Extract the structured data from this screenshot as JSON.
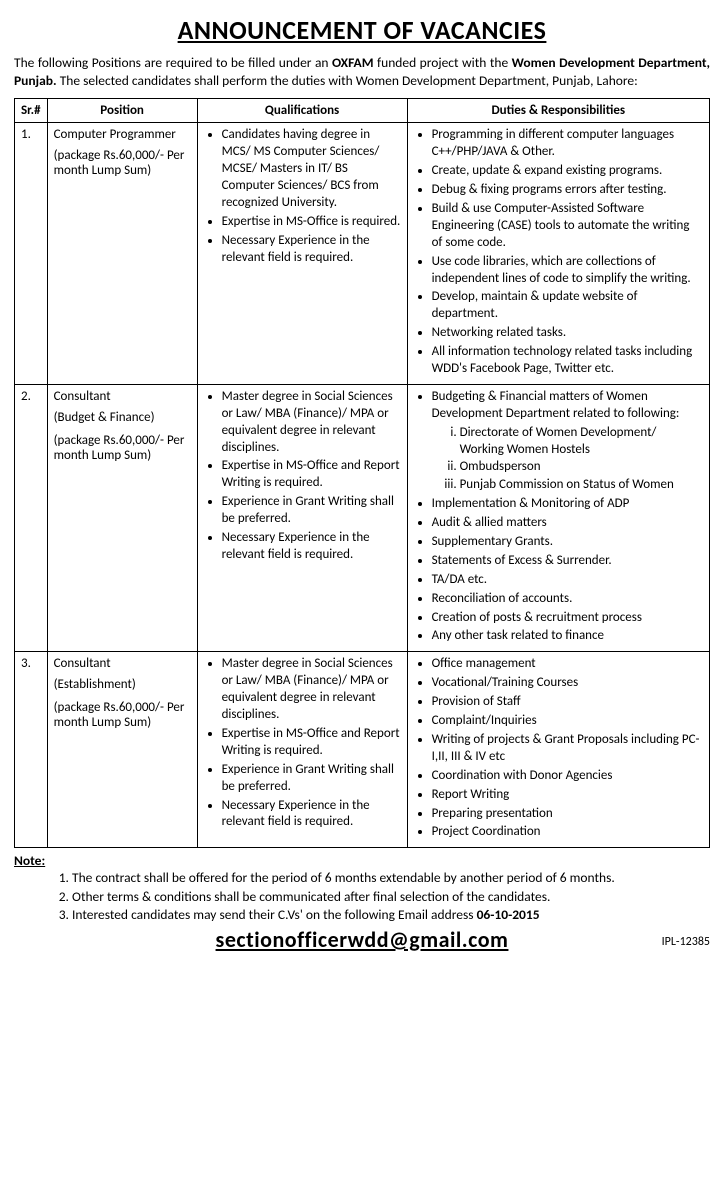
{
  "title": "ANNOUNCEMENT OF VACANCIES",
  "intro": {
    "pre": "The following Positions are required to be filled under an ",
    "oxfam": "OXFAM",
    "mid": " funded project with the ",
    "dept": "Women Development Department, Punjab.",
    "post": " The selected candidates shall perform the duties with Women Development Department, Punjab, Lahore:"
  },
  "headers": {
    "sr": "Sr.#",
    "pos": "Position",
    "qual": "Qualifications",
    "duty": "Duties & Responsibilities"
  },
  "rows": [
    {
      "sr": "1.",
      "pos_title": "Computer Programmer",
      "pos_pkg": "(package Rs.60,000/- Per month Lump Sum)",
      "qual": [
        "Candidates having degree in MCS/ MS Computer Sciences/ MCSE/   Masters in IT/ BS Computer Sciences/ BCS from recognized University.",
        "Expertise in MS-Office is required.",
        "Necessary Experience in the relevant field is required."
      ],
      "duty": [
        "Programming in different computer languages C++/PHP/JAVA & Other.",
        "Create, update & expand existing programs.",
        "Debug & fixing programs errors after testing.",
        "Build & use Computer-Assisted Software Engineering (CASE) tools to automate the writing of some code.",
        "Use code libraries, which are collections of independent lines of code to simplify the writing.",
        "Develop, maintain & update website of department.",
        "Networking related tasks.",
        "All information technology related tasks including WDD's Facebook Page, Twitter etc."
      ]
    },
    {
      "sr": "2.",
      "pos_title": "Consultant",
      "pos_sub": "(Budget & Finance)",
      "pos_pkg": "(package Rs.60,000/- Per month Lump Sum)",
      "qual": [
        "Master degree in Social Sciences or Law/ MBA (Finance)/ MPA or equivalent degree in relevant disciplines.",
        "Expertise in MS-Office and Report Writing is required.",
        "Experience in Grant Writing shall be preferred.",
        "Necessary Experience in the relevant field is required."
      ],
      "duty_lead": "Budgeting & Financial matters of Women Development Department related to following:",
      "duty_roman": [
        "Directorate of Women Development/ Working Women Hostels",
        "Ombudsperson",
        "Punjab Commission on Status of Women"
      ],
      "duty": [
        "Implementation & Monitoring of ADP",
        "Audit & allied matters",
        "Supplementary Grants.",
        "Statements of Excess & Surrender.",
        "TA/DA etc.",
        "Reconciliation of accounts.",
        "Creation of posts & recruitment process",
        "Any other task related to finance"
      ]
    },
    {
      "sr": "3.",
      "pos_title": "Consultant",
      "pos_sub": "(Establishment)",
      "pos_pkg": "(package Rs.60,000/- Per month Lump Sum)",
      "qual": [
        "Master degree in Social Sciences or Law/ MBA (Finance)/ MPA or equivalent degree in relevant disciplines.",
        "Expertise in MS-Office and Report Writing is required.",
        "Experience in Grant Writing shall be preferred.",
        "Necessary Experience in the relevant field is required."
      ],
      "duty": [
        "Office management",
        "Vocational/Training Courses",
        "Provision of Staff",
        "Complaint/Inquiries",
        "Writing of projects & Grant Proposals including PC-I,II, III & IV etc",
        "Coordination with Donor Agencies",
        "Report Writing",
        "Preparing presentation",
        "Project Coordination"
      ]
    }
  ],
  "note_label": "Note:",
  "notes": [
    "The contract shall be offered for the period of 6 months extendable by another period of 6 months.",
    "Other terms & conditions shall be communicated after final selection of the candidates."
  ],
  "note3_pre": "Interested candidates may send their C.Vs' on the following Email address ",
  "note3_date": "06-10-2015",
  "email": "sectionofficerwdd@gmail.com",
  "ipl": "IPL-12385"
}
